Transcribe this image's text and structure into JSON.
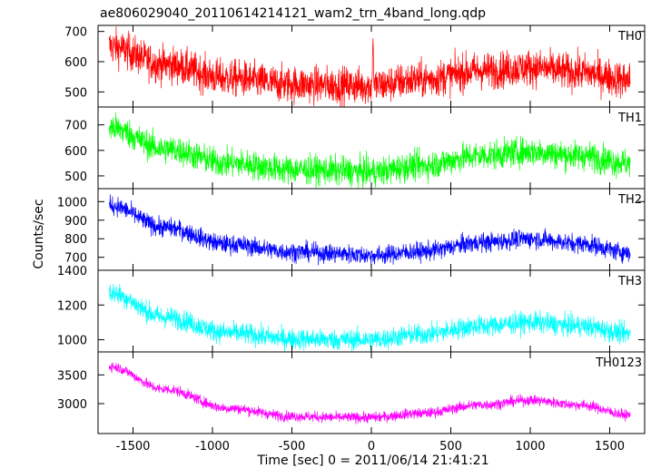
{
  "title": "ae806029040_20110614214121_wam2_trn_4band_long.qdp",
  "chart_data": {
    "type": "line",
    "title": "ae806029040_20110614214121_wam2_trn_4band_long.qdp",
    "xlabel": "Time [sec] 0 = 2011/06/14 21:41:21",
    "ylabel": "Counts/sec",
    "xlim": [
      -1720,
      1720
    ],
    "x_ticks": [
      -1500,
      -1000,
      -500,
      0,
      500,
      1000,
      1500
    ],
    "x_tick_labels": [
      "-1500",
      "-1000",
      "-500",
      "0",
      "500",
      "1000",
      "1500"
    ],
    "x_data_range": [
      -1650,
      1630
    ],
    "grid": false,
    "panels": [
      {
        "name": "TH0",
        "color": "#ff0000",
        "ylim": [
          450,
          720
        ],
        "y_ticks": [
          500,
          600,
          700
        ],
        "y_tick_labels": [
          "500",
          "600",
          "700"
        ],
        "trend": {
          "x": [
            -1650,
            -1300,
            -900,
            -500,
            -200,
            0,
            300,
            700,
            1000,
            1300,
            1630
          ],
          "y": [
            650,
            590,
            545,
            525,
            522,
            520,
            540,
            570,
            580,
            565,
            540
          ]
        },
        "noise": 30,
        "spike": {
          "x": 10,
          "y": 700
        }
      },
      {
        "name": "TH1",
        "color": "#00ff00",
        "ylim": [
          450,
          770
        ],
        "y_ticks": [
          500,
          600,
          700
        ],
        "y_tick_labels": [
          "500",
          "600",
          "700"
        ],
        "trend": {
          "x": [
            -1650,
            -1300,
            -900,
            -500,
            -200,
            0,
            300,
            700,
            1000,
            1300,
            1630
          ],
          "y": [
            690,
            605,
            550,
            525,
            520,
            515,
            540,
            580,
            595,
            580,
            550
          ]
        },
        "noise": 28,
        "spike": null
      },
      {
        "name": "TH2",
        "color": "#0000ff",
        "ylim": [
          630,
          1070
        ],
        "y_ticks": [
          700,
          800,
          900,
          1000
        ],
        "y_tick_labels": [
          "700",
          "800",
          "900",
          "1000"
        ],
        "trend": {
          "x": [
            -1650,
            -1300,
            -900,
            -500,
            -200,
            0,
            300,
            700,
            1000,
            1300,
            1630
          ],
          "y": [
            980,
            860,
            770,
            730,
            720,
            710,
            730,
            780,
            800,
            775,
            725
          ]
        },
        "noise": 25,
        "spike": null
      },
      {
        "name": "TH3",
        "color": "#00ffff",
        "ylim": [
          930,
          1400
        ],
        "y_ticks": [
          1000,
          1200,
          1400
        ],
        "y_tick_labels": [
          "1000",
          "1200",
          "1400"
        ],
        "trend": {
          "x": [
            -1650,
            -1300,
            -900,
            -500,
            -200,
            0,
            300,
            700,
            1000,
            1300,
            1630
          ],
          "y": [
            1270,
            1130,
            1040,
            1005,
            1000,
            1000,
            1030,
            1080,
            1100,
            1080,
            1035
          ]
        },
        "noise": 30,
        "spike": null
      },
      {
        "name": "TH0123",
        "color": "#ff00ff",
        "ylim": [
          2480,
          3900
        ],
        "y_ticks": [
          3000,
          3500
        ],
        "y_tick_labels": [
          "3000",
          "3500"
        ],
        "trend": {
          "x": [
            -1650,
            -1300,
            -900,
            -500,
            -200,
            0,
            300,
            700,
            1000,
            1300,
            1630
          ],
          "y": [
            3650,
            3250,
            2920,
            2780,
            2760,
            2760,
            2830,
            2980,
            3060,
            2980,
            2800
          ]
        },
        "noise": 45,
        "spike": null
      }
    ]
  }
}
